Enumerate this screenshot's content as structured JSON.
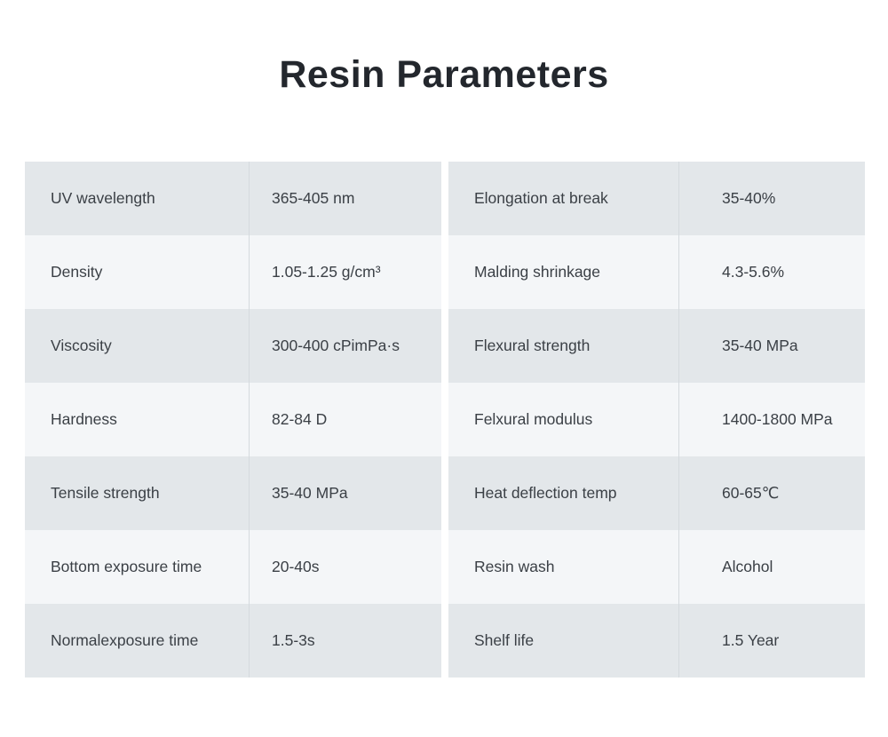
{
  "page": {
    "title": "Resin Parameters",
    "background": "#ffffff"
  },
  "table": {
    "colors": {
      "row_dark": "#e3e7ea",
      "row_light": "#f4f6f8",
      "divider": "#d5dade",
      "text": "#3b4046",
      "title_text": "#23272d"
    },
    "left_rows": [
      {
        "label": "UV wavelength",
        "value": "365-405 nm"
      },
      {
        "label": "Density",
        "value": "1.05-1.25 g/cm³"
      },
      {
        "label": "Viscosity",
        "value": "300-400 cPimPa·s"
      },
      {
        "label": "Hardness",
        "value": "82-84 D"
      },
      {
        "label": "Tensile strength",
        "value": "35-40 MPa"
      },
      {
        "label": "Bottom exposure time",
        "value": "20-40s"
      },
      {
        "label": "Normalexposure time",
        "value": "1.5-3s"
      }
    ],
    "right_rows": [
      {
        "label": "Elongation at break",
        "value": "35-40%"
      },
      {
        "label": "Malding shrinkage",
        "value": "4.3-5.6%"
      },
      {
        "label": "Flexural strength",
        "value": "35-40 MPa"
      },
      {
        "label": "Felxural modulus",
        "value": "1400-1800 MPa"
      },
      {
        "label": "Heat deflection temp",
        "value": "60-65℃"
      },
      {
        "label": "Resin wash",
        "value": "Alcohol"
      },
      {
        "label": "Shelf life",
        "value": "1.5 Year"
      }
    ]
  }
}
